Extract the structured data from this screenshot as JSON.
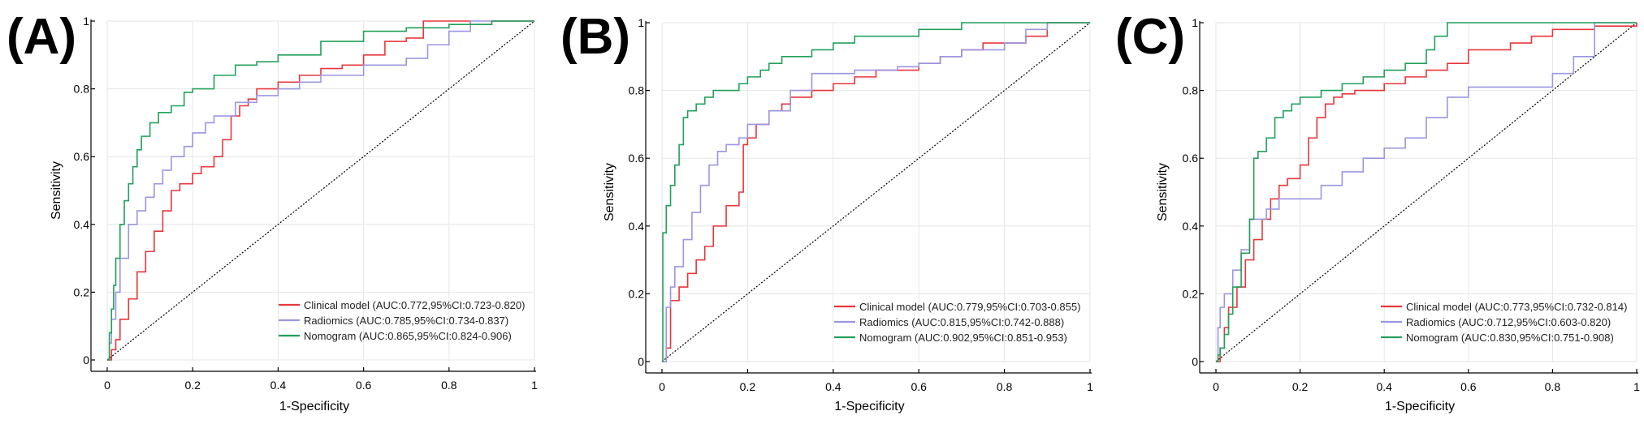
{
  "chart_data": [
    {
      "type": "line",
      "panel_label": "(A)",
      "xlabel": "1-Specificity",
      "ylabel": "Sensitivity",
      "xlim": [
        0,
        1
      ],
      "ylim": [
        0,
        1
      ],
      "x_ticks": [
        "0",
        "0.2",
        "0.4",
        "0.6",
        "0.8",
        "1"
      ],
      "y_ticks": [
        "0",
        "0.2",
        "0.4",
        "0.6",
        "0.8",
        "1"
      ],
      "legend_position": "bottom-right",
      "reference_line": "diagonal",
      "series": [
        {
          "name": "Clinical model (AUC:0.772,95%CI:0.723-0.820)",
          "color": "#e8373c",
          "x": [
            0,
            0.01,
            0.02,
            0.03,
            0.05,
            0.07,
            0.09,
            0.11,
            0.13,
            0.15,
            0.17,
            0.2,
            0.22,
            0.25,
            0.27,
            0.29,
            0.31,
            0.33,
            0.35,
            0.4,
            0.45,
            0.5,
            0.55,
            0.6,
            0.65,
            0.7,
            0.74,
            0.8,
            0.85,
            0.9,
            1
          ],
          "y": [
            0,
            0.03,
            0.06,
            0.12,
            0.18,
            0.26,
            0.32,
            0.38,
            0.44,
            0.5,
            0.52,
            0.55,
            0.57,
            0.6,
            0.65,
            0.72,
            0.75,
            0.77,
            0.8,
            0.82,
            0.84,
            0.86,
            0.87,
            0.9,
            0.94,
            0.95,
            1,
            1,
            0.99,
            1,
            1
          ]
        },
        {
          "name": "Radiomics (AUC:0.785,95%CI:0.734-0.837)",
          "color": "#9b96e2",
          "x": [
            0,
            0.005,
            0.01,
            0.02,
            0.03,
            0.05,
            0.07,
            0.09,
            0.11,
            0.13,
            0.15,
            0.18,
            0.2,
            0.23,
            0.25,
            0.3,
            0.35,
            0.4,
            0.45,
            0.5,
            0.6,
            0.7,
            0.75,
            0.8,
            0.85,
            0.9,
            1
          ],
          "y": [
            0,
            0.05,
            0.12,
            0.2,
            0.3,
            0.4,
            0.44,
            0.48,
            0.52,
            0.56,
            0.6,
            0.63,
            0.67,
            0.7,
            0.72,
            0.76,
            0.78,
            0.8,
            0.82,
            0.84,
            0.87,
            0.89,
            0.93,
            0.97,
            1,
            1,
            1
          ]
        },
        {
          "name": "Nomogram (AUC:0.865,95%CI:0.824-0.906)",
          "color": "#22a05c",
          "x": [
            0,
            0.005,
            0.01,
            0.015,
            0.02,
            0.03,
            0.04,
            0.05,
            0.06,
            0.07,
            0.08,
            0.1,
            0.12,
            0.15,
            0.18,
            0.2,
            0.25,
            0.3,
            0.35,
            0.4,
            0.5,
            0.6,
            0.7,
            0.8,
            0.9,
            1
          ],
          "y": [
            0,
            0.08,
            0.15,
            0.22,
            0.3,
            0.4,
            0.47,
            0.52,
            0.57,
            0.62,
            0.66,
            0.7,
            0.73,
            0.75,
            0.79,
            0.8,
            0.84,
            0.87,
            0.88,
            0.9,
            0.94,
            0.97,
            0.98,
            0.99,
            1,
            1
          ]
        }
      ]
    },
    {
      "type": "line",
      "panel_label": "(B)",
      "xlabel": "1-Specificity",
      "ylabel": "Sensitivity",
      "xlim": [
        0,
        1
      ],
      "ylim": [
        0,
        1
      ],
      "x_ticks": [
        "0",
        "0.2",
        "0.4",
        "0.6",
        "0.8",
        "1"
      ],
      "y_ticks": [
        "0",
        "0.2",
        "0.4",
        "0.6",
        "0.8",
        "1"
      ],
      "legend_position": "bottom-right",
      "reference_line": "diagonal",
      "series": [
        {
          "name": "Clinical model (AUC:0.779,95%CI:0.703-0.855)",
          "color": "#e8373c",
          "x": [
            0,
            0.01,
            0.02,
            0.04,
            0.06,
            0.08,
            0.1,
            0.12,
            0.15,
            0.18,
            0.19,
            0.2,
            0.22,
            0.25,
            0.28,
            0.3,
            0.35,
            0.4,
            0.45,
            0.5,
            0.55,
            0.6,
            0.65,
            0.7,
            0.75,
            0.8,
            0.85,
            0.9,
            1
          ],
          "y": [
            0,
            0.04,
            0.18,
            0.22,
            0.26,
            0.3,
            0.34,
            0.4,
            0.46,
            0.5,
            0.64,
            0.66,
            0.7,
            0.74,
            0.76,
            0.78,
            0.8,
            0.82,
            0.84,
            0.86,
            0.86,
            0.88,
            0.9,
            0.92,
            0.94,
            0.94,
            0.96,
            1,
            1
          ]
        },
        {
          "name": "Radiomics (AUC:0.815,95%CI:0.742-0.888)",
          "color": "#9b96e2",
          "x": [
            0,
            0.01,
            0.02,
            0.03,
            0.05,
            0.07,
            0.09,
            0.11,
            0.13,
            0.15,
            0.18,
            0.2,
            0.25,
            0.3,
            0.35,
            0.45,
            0.55,
            0.6,
            0.65,
            0.7,
            0.8,
            0.85,
            0.9,
            1
          ],
          "y": [
            0,
            0.16,
            0.22,
            0.28,
            0.36,
            0.44,
            0.52,
            0.58,
            0.62,
            0.64,
            0.66,
            0.7,
            0.74,
            0.8,
            0.85,
            0.86,
            0.87,
            0.88,
            0.9,
            0.92,
            0.94,
            0.98,
            1,
            1
          ]
        },
        {
          "name": "Nomogram (AUC:0.902,95%CI:0.851-0.953)",
          "color": "#22a05c",
          "x": [
            0,
            0.002,
            0.01,
            0.02,
            0.03,
            0.04,
            0.05,
            0.06,
            0.08,
            0.1,
            0.12,
            0.15,
            0.18,
            0.2,
            0.23,
            0.25,
            0.28,
            0.3,
            0.35,
            0.4,
            0.45,
            0.5,
            0.6,
            0.7,
            0.75,
            0.8,
            0.9,
            1
          ],
          "y": [
            0,
            0.38,
            0.46,
            0.52,
            0.58,
            0.64,
            0.72,
            0.74,
            0.76,
            0.78,
            0.8,
            0.8,
            0.82,
            0.84,
            0.86,
            0.88,
            0.9,
            0.9,
            0.92,
            0.94,
            0.96,
            0.96,
            0.98,
            1,
            1,
            1,
            1,
            1
          ]
        }
      ]
    },
    {
      "type": "line",
      "panel_label": "(C)",
      "xlabel": "1-Specificity",
      "ylabel": "Sensitivity",
      "xlim": [
        0,
        1
      ],
      "ylim": [
        0,
        1
      ],
      "x_ticks": [
        "0",
        "0.2",
        "0.4",
        "0.6",
        "0.8",
        "1"
      ],
      "y_ticks": [
        "0",
        "0.2",
        "0.4",
        "0.6",
        "0.8",
        "1"
      ],
      "legend_position": "bottom-right",
      "reference_line": "diagonal",
      "series": [
        {
          "name": "Clinical model (AUC:0.773,95%CI:0.732-0.814)",
          "color": "#e8373c",
          "x": [
            0,
            0.01,
            0.02,
            0.03,
            0.05,
            0.07,
            0.09,
            0.11,
            0.13,
            0.15,
            0.17,
            0.2,
            0.22,
            0.24,
            0.26,
            0.28,
            0.3,
            0.33,
            0.36,
            0.4,
            0.45,
            0.5,
            0.55,
            0.6,
            0.7,
            0.75,
            0.8,
            0.9,
            1
          ],
          "y": [
            0,
            0.04,
            0.1,
            0.16,
            0.22,
            0.3,
            0.36,
            0.42,
            0.48,
            0.52,
            0.54,
            0.58,
            0.66,
            0.72,
            0.76,
            0.78,
            0.79,
            0.8,
            0.8,
            0.82,
            0.84,
            0.86,
            0.88,
            0.92,
            0.94,
            0.96,
            0.98,
            0.99,
            1
          ]
        },
        {
          "name": "Radiomics (AUC:0.712,95%CI:0.603-0.820)",
          "color": "#9b96e2",
          "x": [
            0,
            0.005,
            0.01,
            0.02,
            0.04,
            0.06,
            0.08,
            0.1,
            0.12,
            0.15,
            0.18,
            0.2,
            0.25,
            0.3,
            0.35,
            0.4,
            0.45,
            0.5,
            0.55,
            0.6,
            0.65,
            0.7,
            0.75,
            0.8,
            0.85,
            0.9,
            0.95,
            1
          ],
          "y": [
            0,
            0.1,
            0.16,
            0.2,
            0.27,
            0.33,
            0.42,
            0.42,
            0.45,
            0.48,
            0.48,
            0.48,
            0.52,
            0.56,
            0.6,
            0.63,
            0.66,
            0.72,
            0.78,
            0.81,
            0.81,
            0.81,
            0.81,
            0.85,
            0.9,
            1,
            1,
            1
          ]
        },
        {
          "name": "Nomogram (AUC:0.830,95%CI:0.751-0.908)",
          "color": "#22a05c",
          "x": [
            0,
            0.005,
            0.01,
            0.02,
            0.03,
            0.04,
            0.06,
            0.08,
            0.09,
            0.1,
            0.12,
            0.14,
            0.16,
            0.18,
            0.2,
            0.22,
            0.25,
            0.3,
            0.35,
            0.4,
            0.45,
            0.5,
            0.52,
            0.55,
            0.6,
            0.7,
            0.8,
            0.9,
            1
          ],
          "y": [
            0,
            0.02,
            0.04,
            0.08,
            0.14,
            0.22,
            0.32,
            0.42,
            0.6,
            0.62,
            0.66,
            0.72,
            0.74,
            0.76,
            0.78,
            0.78,
            0.8,
            0.82,
            0.84,
            0.86,
            0.88,
            0.92,
            0.96,
            1,
            1,
            1,
            1,
            1,
            1
          ]
        }
      ]
    }
  ]
}
